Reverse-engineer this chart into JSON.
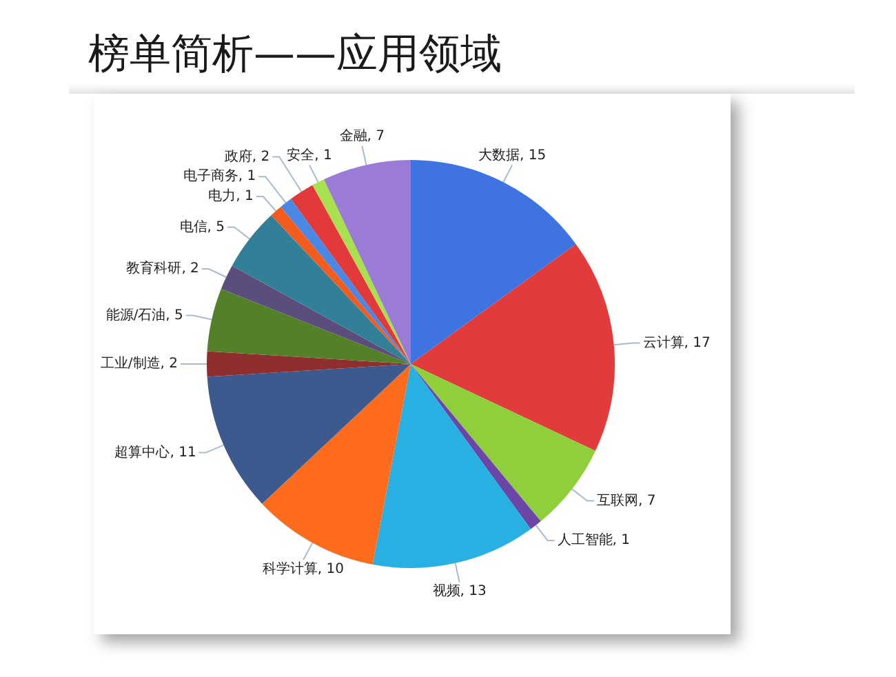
{
  "chart_data": {
    "type": "pie",
    "title": "榜单简析——应用领域",
    "categories": [
      "大数据",
      "云计算",
      "互联网",
      "人工智能",
      "视频",
      "科学计算",
      "超算中心",
      "工业/制造",
      "能源/石油",
      "教育科研",
      "电信",
      "电力",
      "电子商务",
      "政府",
      "安全",
      "金融"
    ],
    "values": [
      15,
      17,
      7,
      1,
      13,
      10,
      11,
      2,
      5,
      2,
      5,
      1,
      1,
      2,
      1,
      7
    ],
    "value_labels": [
      ", 15",
      ", 17",
      ", 7",
      ", 1",
      ", 13",
      ", 10",
      ", 11",
      ", 2",
      ", 5",
      ", 2",
      ", 5",
      ", 1",
      ", 1",
      ", 2",
      ", 1",
      ", 7"
    ],
    "colors": [
      "#3f74e0",
      "#e23b3b",
      "#8fcf3c",
      "#6b46a6",
      "#28b0e2",
      "#ff6b1c",
      "#3d5a8e",
      "#8e2e2e",
      "#55802a",
      "#5c4e7c",
      "#327f98",
      "#f25c1e",
      "#4a88e6",
      "#e23a3a",
      "#a8e050",
      "#9a7bd6"
    ]
  }
}
